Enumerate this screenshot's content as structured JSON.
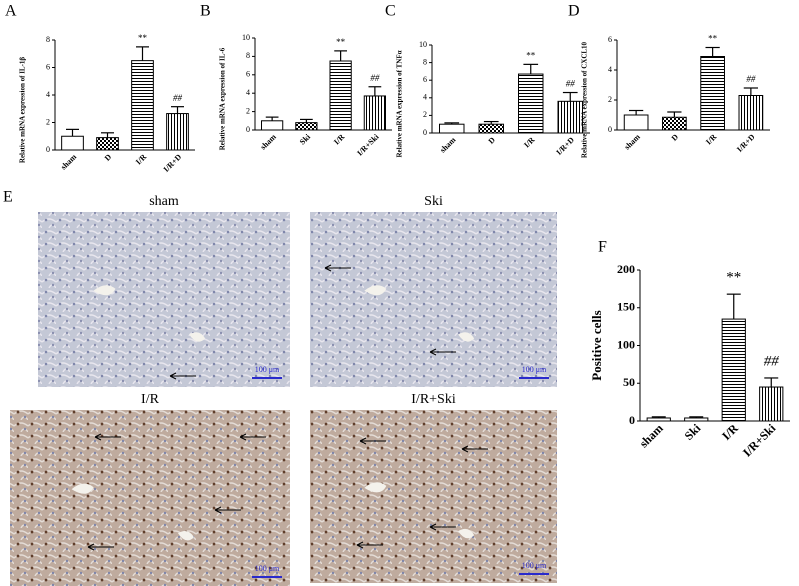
{
  "chart_data": [
    {
      "type": "bar",
      "panel": "A",
      "y_label": "Relative mRNA expression of IL-1β",
      "categories": [
        "sham",
        "D",
        "I/R",
        "I/R+D"
      ],
      "values": [
        1.0,
        0.9,
        6.5,
        2.65
      ],
      "errors": [
        0.5,
        0.35,
        1.0,
        0.5
      ],
      "annotations": [
        null,
        null,
        "**",
        "##"
      ],
      "fill_patterns": [
        "none",
        "checker",
        "horizontal",
        "vertical"
      ],
      "color": "#000000",
      "ylim": [
        0,
        8
      ],
      "yticks": [
        0,
        2,
        4,
        6,
        8
      ]
    },
    {
      "type": "bar",
      "panel": "B",
      "y_label": "Relative mRNA expression of IL-6",
      "categories": [
        "sham",
        "Ski",
        "I/R",
        "I/R+Ski"
      ],
      "values": [
        1.0,
        0.8,
        7.5,
        3.7
      ],
      "errors": [
        0.4,
        0.35,
        1.1,
        1.0
      ],
      "annotations": [
        null,
        null,
        "**",
        "##"
      ],
      "fill_patterns": [
        "none",
        "checker",
        "horizontal",
        "vertical"
      ],
      "color": "#000000",
      "ylim": [
        0,
        10
      ],
      "yticks": [
        0,
        2,
        4,
        6,
        8,
        10
      ]
    },
    {
      "type": "bar",
      "panel": "C",
      "y_label": "Relative mRNA expression of TNFα",
      "categories": [
        "sham",
        "D",
        "I/R",
        "I/R+D"
      ],
      "values": [
        1.0,
        1.0,
        6.7,
        3.6
      ],
      "errors": [
        0.15,
        0.3,
        1.1,
        1.0
      ],
      "annotations": [
        null,
        null,
        "**",
        "##"
      ],
      "fill_patterns": [
        "none",
        "checker",
        "horizontal",
        "vertical"
      ],
      "color": "#000000",
      "ylim": [
        0,
        10
      ],
      "yticks": [
        0,
        2,
        4,
        6,
        8,
        10
      ]
    },
    {
      "type": "bar",
      "panel": "D",
      "y_label": "Relative mRNA expression of CXCL10",
      "categories": [
        "sham",
        "D",
        "I/R",
        "I/R+D"
      ],
      "values": [
        1.0,
        0.85,
        4.9,
        2.3
      ],
      "errors": [
        0.3,
        0.35,
        0.6,
        0.5
      ],
      "annotations": [
        null,
        null,
        "**",
        "##"
      ],
      "fill_patterns": [
        "none",
        "checker",
        "horizontal",
        "vertical"
      ],
      "color": "#000000",
      "ylim": [
        0,
        6
      ],
      "yticks": [
        0,
        2,
        4,
        6
      ]
    },
    {
      "type": "bar",
      "panel": "F",
      "y_label": "Positive cells",
      "categories": [
        "sham",
        "Ski",
        "I/R",
        "I/R+Ski"
      ],
      "values": [
        4,
        4,
        135,
        45
      ],
      "errors": [
        1.5,
        1.5,
        33,
        12
      ],
      "annotations": [
        null,
        null,
        "**",
        "##"
      ],
      "fill_patterns": [
        "none",
        "none",
        "horizontal",
        "vertical"
      ],
      "color": "#000000",
      "ylim": [
        0,
        200
      ],
      "yticks": [
        0,
        50,
        100,
        150,
        200
      ]
    }
  ],
  "micrographs": {
    "panel": "E",
    "images": [
      {
        "title": "sham",
        "scale_bar": "100 μm"
      },
      {
        "title": "Ski",
        "scale_bar": "100 μm"
      },
      {
        "title": "I/R",
        "scale_bar": "100 μm"
      },
      {
        "title": "I/R+Ski",
        "scale_bar": "100 μm"
      }
    ]
  }
}
